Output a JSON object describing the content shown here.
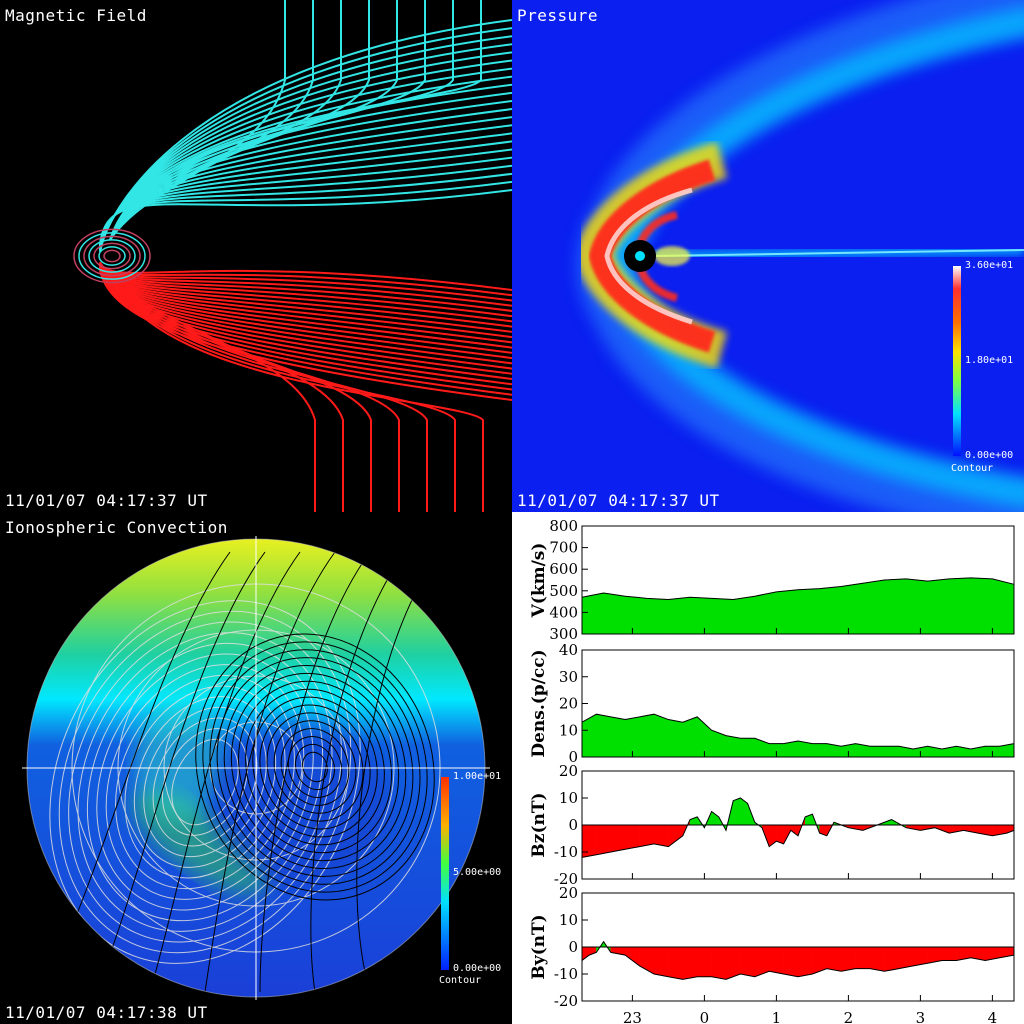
{
  "magnetic_panel": {
    "title": "Magnetic Field",
    "timestamp": "11/01/07 04:17:37 UT"
  },
  "pressure_panel": {
    "title": "Pressure",
    "timestamp": "11/01/07 04:17:37 UT",
    "colorbar": {
      "max": "3.60e+01",
      "mid": "1.80e+01",
      "min": "0.00e+00",
      "caption": "Contour"
    }
  },
  "ionosphere_panel": {
    "title": "Ionospheric Convection",
    "timestamp": "11/01/07 04:17:38 UT",
    "colorbar": {
      "max": "1.00e+01",
      "mid": "5.00e+00",
      "min": "0.00e+00",
      "caption": "Contour"
    }
  },
  "colors": {
    "field_north": "#33e6e6",
    "field_south": "#ff1a1a",
    "fill_positive": "#00e000",
    "fill_negative": "#ff0000"
  },
  "chart_data": [
    {
      "type": "area",
      "ylabel": "V(km/s)",
      "ylim": [
        300,
        800
      ],
      "yticks": [
        "800",
        "700",
        "600",
        "500",
        "400",
        "300"
      ],
      "x": [
        22.3,
        22.6,
        22.9,
        23.2,
        23.5,
        23.8,
        24.1,
        24.4,
        24.7,
        25.0,
        25.3,
        25.6,
        25.9,
        26.2,
        26.5,
        26.8,
        27.1,
        27.4,
        27.7,
        28.0,
        28.3
      ],
      "values": [
        470,
        490,
        475,
        465,
        460,
        470,
        465,
        460,
        475,
        495,
        505,
        510,
        520,
        535,
        550,
        555,
        545,
        555,
        560,
        555,
        530
      ]
    },
    {
      "type": "area",
      "ylabel": "Dens.(p/cc)",
      "ylim": [
        0,
        40
      ],
      "yticks": [
        "40",
        "30",
        "20",
        "10",
        "0"
      ],
      "x": [
        22.3,
        22.5,
        22.7,
        22.9,
        23.1,
        23.3,
        23.5,
        23.7,
        23.9,
        24.1,
        24.3,
        24.5,
        24.7,
        24.9,
        25.1,
        25.3,
        25.5,
        25.7,
        25.9,
        26.1,
        26.3,
        26.5,
        26.7,
        26.9,
        27.1,
        27.3,
        27.5,
        27.7,
        27.9,
        28.1,
        28.3
      ],
      "values": [
        13,
        16,
        15,
        14,
        15,
        16,
        14,
        13,
        15,
        10,
        8,
        7,
        7,
        5,
        5,
        6,
        5,
        5,
        4,
        5,
        4,
        4,
        4,
        3,
        4,
        3,
        4,
        3,
        4,
        4,
        5
      ]
    },
    {
      "type": "area",
      "ylabel": "Bz(nT)",
      "ylim": [
        -20,
        20
      ],
      "yticks": [
        "20",
        "10",
        "0",
        "-10",
        "-20"
      ],
      "x": [
        22.3,
        22.5,
        22.7,
        22.9,
        23.1,
        23.3,
        23.5,
        23.7,
        23.8,
        23.9,
        24.0,
        24.1,
        24.2,
        24.3,
        24.4,
        24.5,
        24.6,
        24.7,
        24.8,
        24.9,
        25.0,
        25.1,
        25.2,
        25.3,
        25.4,
        25.5,
        25.6,
        25.7,
        25.8,
        25.9,
        26.0,
        26.2,
        26.4,
        26.6,
        26.8,
        27.0,
        27.2,
        27.4,
        27.6,
        27.8,
        28.0,
        28.2,
        28.3
      ],
      "values": [
        -12,
        -11,
        -10,
        -9,
        -8,
        -7,
        -8,
        -4,
        2,
        3,
        -1,
        5,
        3,
        -2,
        9,
        10,
        8,
        1,
        -1,
        -8,
        -6,
        -7,
        -2,
        -4,
        3,
        4,
        -3,
        -4,
        1,
        0,
        -1,
        -2,
        0,
        2,
        -1,
        -2,
        -1,
        -3,
        -2,
        -3,
        -4,
        -3,
        -2
      ]
    },
    {
      "type": "area",
      "ylabel": "By(nT)",
      "ylim": [
        -20,
        20
      ],
      "yticks": [
        "20",
        "10",
        "0",
        "-10",
        "-20"
      ],
      "xticks": [
        "23",
        "0",
        "1",
        "2",
        "3",
        "4"
      ],
      "x": [
        22.3,
        22.4,
        22.5,
        22.6,
        22.7,
        22.9,
        23.1,
        23.3,
        23.5,
        23.7,
        23.9,
        24.1,
        24.3,
        24.5,
        24.7,
        24.9,
        25.1,
        25.3,
        25.5,
        25.7,
        25.9,
        26.1,
        26.3,
        26.5,
        26.7,
        26.9,
        27.1,
        27.3,
        27.5,
        27.7,
        27.9,
        28.1,
        28.3
      ],
      "values": [
        -5,
        -3,
        -2,
        2,
        -2,
        -3,
        -7,
        -10,
        -11,
        -12,
        -11,
        -11,
        -12,
        -10,
        -11,
        -9,
        -10,
        -11,
        -10,
        -8,
        -9,
        -8,
        -8,
        -9,
        -8,
        -7,
        -6,
        -5,
        -5,
        -4,
        -5,
        -4,
        -3
      ]
    }
  ]
}
